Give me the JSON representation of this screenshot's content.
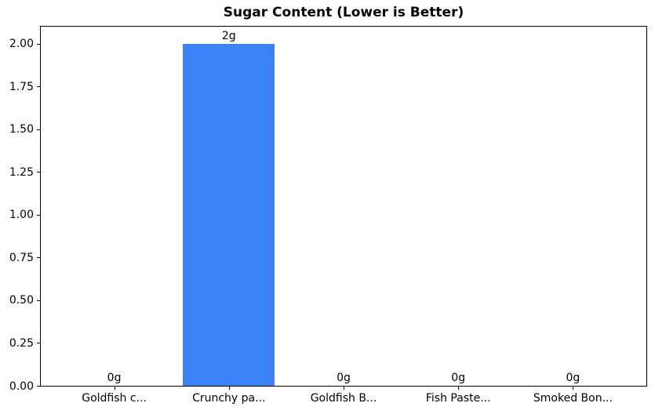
{
  "chart_data": {
    "type": "bar",
    "title": "Sugar Content (Lower is Better)",
    "categories": [
      "Goldfish c...",
      "Crunchy pa...",
      "Goldfish B...",
      "Fish Paste...",
      "Smoked Bon..."
    ],
    "values": [
      0,
      2,
      0,
      0,
      0
    ],
    "bar_labels": [
      "0g",
      "2g",
      "0g",
      "0g",
      "0g"
    ],
    "xlabel": "",
    "ylabel": "",
    "ylim": [
      0,
      2.1
    ],
    "yticks": [
      0,
      0.25,
      0.5,
      0.75,
      1.0,
      1.25,
      1.5,
      1.75,
      2.0
    ],
    "ytick_labels": [
      "0.00",
      "0.25",
      "0.50",
      "0.75",
      "1.00",
      "1.25",
      "1.50",
      "1.75",
      "2.00"
    ],
    "bar_color": "#3b82f6",
    "text_color": "#000000",
    "grid": false,
    "legend": null
  }
}
